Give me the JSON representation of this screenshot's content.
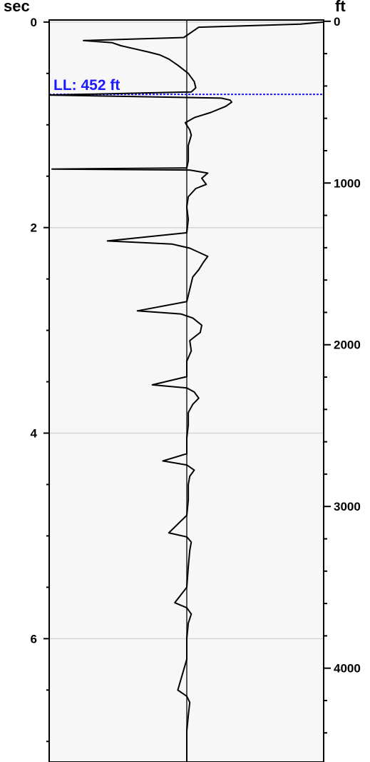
{
  "chart_data": {
    "type": "line",
    "left_axis": {
      "title": "sec",
      "ticks": [
        0,
        2,
        4,
        6
      ],
      "range": [
        -0.02,
        7.2
      ]
    },
    "right_axis": {
      "title": "ft",
      "ticks": [
        0,
        1000,
        2000,
        3000,
        4000
      ],
      "range": [
        -8,
        4580
      ]
    },
    "grid": "horizontal at major left ticks",
    "marker": {
      "label": "LL: 452 ft",
      "depth_ft": 452,
      "color": "#1a1aff"
    },
    "series": [
      {
        "values": [
          [
            0.0,
            10.0
          ],
          [
            0.02,
            7.6
          ],
          [
            0.05,
            0.8
          ],
          [
            0.1,
            0.3
          ],
          [
            0.15,
            -0.2
          ],
          [
            0.18,
            -6.9
          ],
          [
            0.2,
            -5.0
          ],
          [
            0.23,
            -4.4
          ],
          [
            0.26,
            -3.5
          ],
          [
            0.29,
            -2.6
          ],
          [
            0.32,
            -1.8
          ],
          [
            0.36,
            -1.2
          ],
          [
            0.42,
            -0.6
          ],
          [
            0.5,
            0.1
          ],
          [
            0.58,
            0.5
          ],
          [
            0.64,
            0.6
          ],
          [
            0.68,
            0.3
          ],
          [
            0.71,
            -9.3
          ],
          [
            0.74,
            2.3
          ],
          [
            0.76,
            2.9
          ],
          [
            0.78,
            3.0
          ],
          [
            0.82,
            2.6
          ],
          [
            0.88,
            1.6
          ],
          [
            0.93,
            0.5
          ],
          [
            0.98,
            -0.1
          ],
          [
            1.05,
            0.2
          ],
          [
            1.1,
            0.3
          ],
          [
            1.2,
            0.1
          ],
          [
            1.35,
            0.1
          ],
          [
            1.42,
            0.0
          ],
          [
            1.43,
            -9.0
          ],
          [
            1.44,
            0.2
          ],
          [
            1.47,
            1.4
          ],
          [
            1.52,
            1.0
          ],
          [
            1.58,
            1.3
          ],
          [
            1.62,
            0.6
          ],
          [
            1.7,
            0.1
          ],
          [
            1.8,
            0.0
          ],
          [
            1.92,
            0.1
          ],
          [
            2.05,
            0.0
          ],
          [
            2.13,
            -5.3
          ],
          [
            2.16,
            -1.0
          ],
          [
            2.2,
            0.2
          ],
          [
            2.28,
            1.4
          ],
          [
            2.34,
            1.1
          ],
          [
            2.41,
            0.8
          ],
          [
            2.48,
            0.4
          ],
          [
            2.6,
            0.2
          ],
          [
            2.72,
            0.0
          ],
          [
            2.81,
            -3.3
          ],
          [
            2.84,
            -0.4
          ],
          [
            2.88,
            0.4
          ],
          [
            2.95,
            1.0
          ],
          [
            3.02,
            0.9
          ],
          [
            3.1,
            0.2
          ],
          [
            3.2,
            0.3
          ],
          [
            3.3,
            0.0
          ],
          [
            3.45,
            0.0
          ],
          [
            3.53,
            -2.3
          ],
          [
            3.56,
            0.0
          ],
          [
            3.6,
            0.5
          ],
          [
            3.66,
            0.8
          ],
          [
            3.72,
            0.4
          ],
          [
            3.8,
            0.1
          ],
          [
            3.92,
            0.1
          ],
          [
            4.05,
            0.0
          ],
          [
            4.2,
            0.0
          ],
          [
            4.27,
            -1.6
          ],
          [
            4.31,
            0.0
          ],
          [
            4.36,
            0.5
          ],
          [
            4.42,
            0.2
          ],
          [
            4.5,
            0.1
          ],
          [
            4.65,
            0.1
          ],
          [
            4.8,
            0.0
          ],
          [
            4.97,
            -1.2
          ],
          [
            5.01,
            0.0
          ],
          [
            5.06,
            0.3
          ],
          [
            5.14,
            0.2
          ],
          [
            5.3,
            0.1
          ],
          [
            5.5,
            0.0
          ],
          [
            5.65,
            -0.8
          ],
          [
            5.7,
            0.0
          ],
          [
            5.76,
            0.3
          ],
          [
            5.85,
            0.1
          ],
          [
            6.0,
            0.0
          ],
          [
            6.2,
            0.0
          ],
          [
            6.5,
            -0.6
          ],
          [
            6.56,
            0.0
          ],
          [
            6.62,
            0.2
          ],
          [
            6.75,
            0.1
          ],
          [
            6.9,
            0.0
          ],
          [
            7.1,
            0.0
          ],
          [
            7.2,
            0.0
          ]
        ],
        "color": "#000000"
      }
    ]
  }
}
